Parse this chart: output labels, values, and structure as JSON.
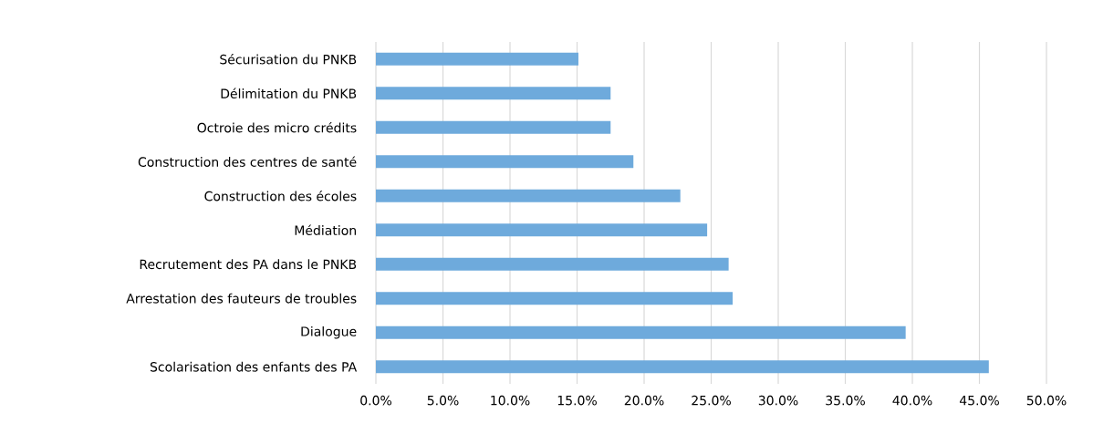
{
  "chart_data": {
    "type": "bar",
    "orientation": "horizontal",
    "categories": [
      "Sécurisation du PNKB",
      "Délimitation du PNKB",
      "Octroie des micro crédits",
      "Construction des centres de santé",
      "Construction des écoles",
      "Médiation",
      "Recrutement des PA dans le PNKB",
      "Arrestation des fauteurs de troubles",
      "Dialogue",
      "Scolarisation des enfants des PA"
    ],
    "values": [
      15.1,
      17.5,
      17.5,
      19.2,
      22.7,
      24.7,
      26.3,
      26.6,
      39.5,
      45.7
    ],
    "color": "#6eaadc",
    "xlim": [
      0,
      50
    ],
    "xticks": [
      {
        "value": 0,
        "label": "0.0%"
      },
      {
        "value": 5,
        "label": "5.0%"
      },
      {
        "value": 10,
        "label": "10.0%"
      },
      {
        "value": 15,
        "label": "15.0%"
      },
      {
        "value": 20,
        "label": "20.0%"
      },
      {
        "value": 25,
        "label": "25.0%"
      },
      {
        "value": 30,
        "label": "30.0%"
      },
      {
        "value": 35,
        "label": "35.0%"
      },
      {
        "value": 40,
        "label": "40.0%"
      },
      {
        "value": 45,
        "label": "45.0%"
      },
      {
        "value": 50,
        "label": "50.0%"
      }
    ],
    "grid": "x"
  }
}
